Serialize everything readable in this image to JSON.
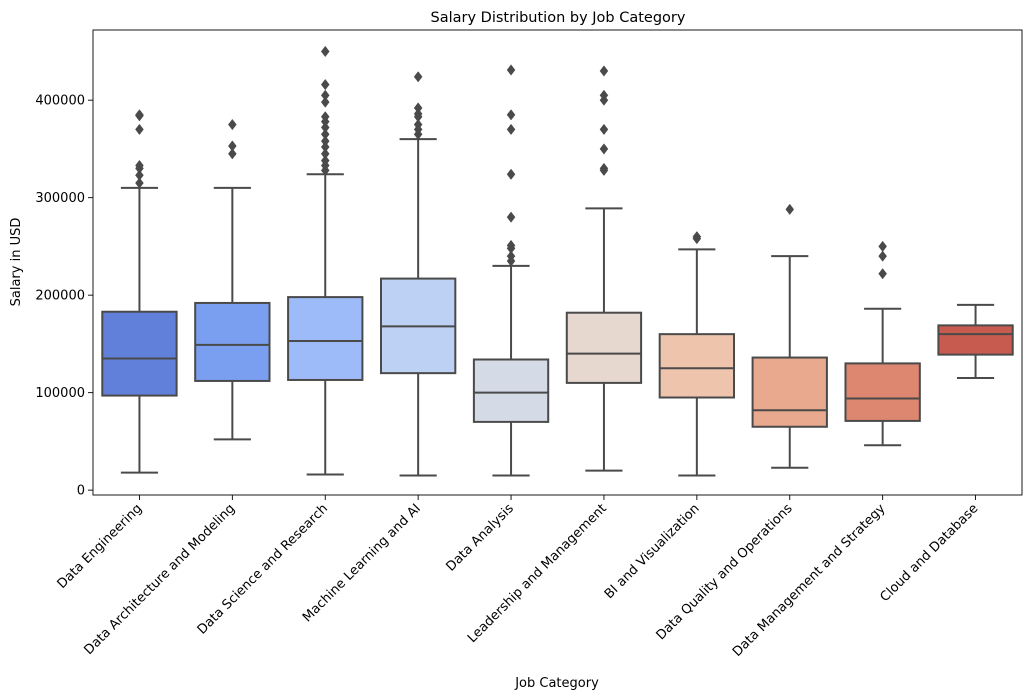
{
  "chart_data": {
    "type": "box",
    "title": "Salary Distribution by Job Category",
    "xlabel": "Job Category",
    "ylabel": "Salary in USD",
    "ylim": [
      -5000,
      472000
    ],
    "yticks": [
      0,
      100000,
      200000,
      300000,
      400000
    ],
    "ytick_labels": [
      "0",
      "100000",
      "200000",
      "300000",
      "400000"
    ],
    "grid": false,
    "categories": [
      "Data Engineering",
      "Data Architecture and Modeling",
      "Data Science and Research",
      "Machine Learning and AI",
      "Data Analysis",
      "Leadership and Management",
      "BI and Visualization",
      "Data Quality and Operations",
      "Data Management and Strategy",
      "Cloud and Database"
    ],
    "boxes": [
      {
        "whisker_low": 18000,
        "q1": 97000,
        "median": 135000,
        "q3": 183000,
        "whisker_high": 310000,
        "color": "#6180da",
        "outliers": [
          315000,
          323000,
          330000,
          333000,
          370000,
          384000,
          385000
        ]
      },
      {
        "whisker_low": 52000,
        "q1": 112000,
        "median": 149000,
        "q3": 192000,
        "whisker_high": 310000,
        "color": "#7b9ff0",
        "outliers": [
          345000,
          353000,
          375000
        ]
      },
      {
        "whisker_low": 16000,
        "q1": 113000,
        "median": 153000,
        "q3": 198000,
        "whisker_high": 324000,
        "color": "#9dbbf8",
        "outliers": [
          328000,
          333000,
          338000,
          345000,
          352000,
          358000,
          365000,
          372000,
          378000,
          383000,
          398000,
          405000,
          416000,
          450000
        ]
      },
      {
        "whisker_low": 15000,
        "q1": 120000,
        "median": 168000,
        "q3": 217000,
        "whisker_high": 360000,
        "color": "#bdd1f5",
        "outliers": [
          365000,
          370000,
          375000,
          383000,
          386000,
          392000,
          424000
        ]
      },
      {
        "whisker_low": 15000,
        "q1": 70000,
        "median": 100000,
        "q3": 134000,
        "whisker_high": 230000,
        "color": "#d5dbe6",
        "outliers": [
          235000,
          240000,
          248000,
          251000,
          280000,
          324000,
          370000,
          385000,
          431000
        ]
      },
      {
        "whisker_low": 20000,
        "q1": 110000,
        "median": 140000,
        "q3": 182000,
        "whisker_high": 289000,
        "color": "#e6d7cf",
        "outliers": [
          328000,
          330000,
          350000,
          370000,
          400000,
          405000,
          430000
        ]
      },
      {
        "whisker_low": 15000,
        "q1": 95000,
        "median": 125000,
        "q3": 160000,
        "whisker_high": 247000,
        "color": "#eec4ad",
        "outliers": [
          258000,
          260000
        ]
      },
      {
        "whisker_low": 23000,
        "q1": 65000,
        "median": 82000,
        "q3": 136000,
        "whisker_high": 240000,
        "color": "#e9a98e",
        "outliers": [
          288000
        ]
      },
      {
        "whisker_low": 46000,
        "q1": 71000,
        "median": 94000,
        "q3": 130000,
        "whisker_high": 186000,
        "color": "#dd8670",
        "outliers": [
          222000,
          240000,
          250000
        ]
      },
      {
        "whisker_low": 115000,
        "q1": 139000,
        "median": 160000,
        "q3": 169000,
        "whisker_high": 190000,
        "color": "#c85b4f",
        "outliers": []
      }
    ],
    "line_color": "#4a4a4a"
  }
}
